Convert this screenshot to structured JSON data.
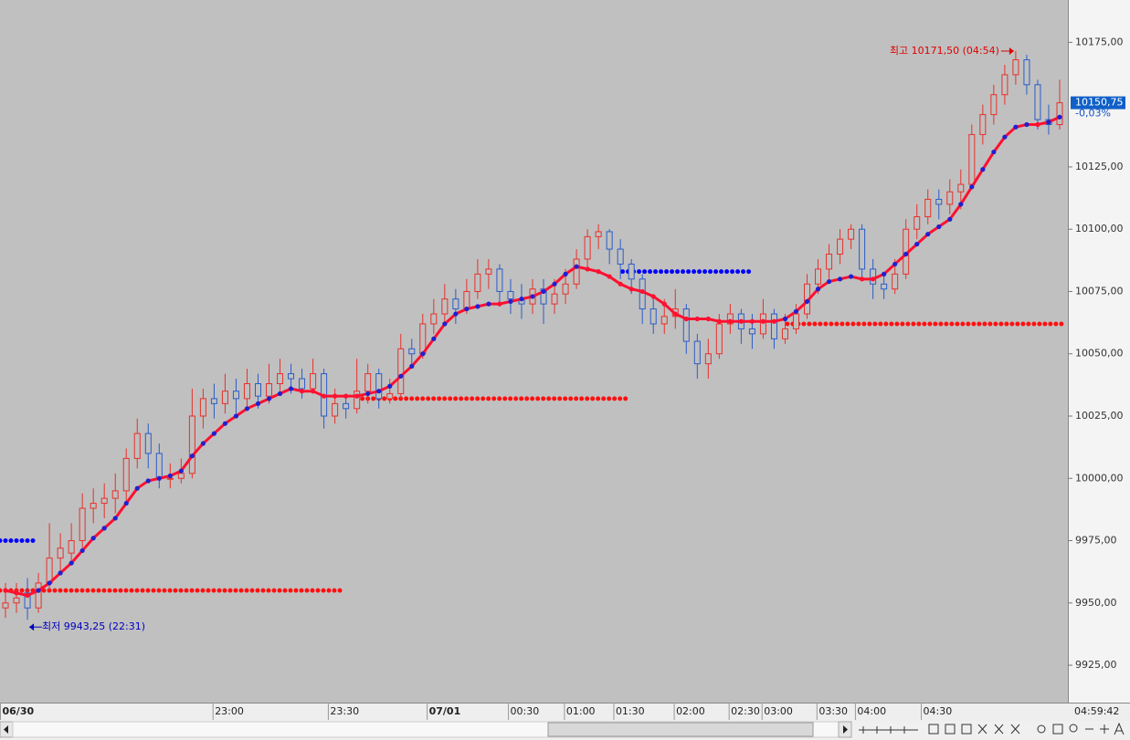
{
  "chart_data": {
    "type": "candlestick",
    "xlim": [
      -0.5,
      96.5
    ],
    "xticks": [
      {
        "value": -0.5,
        "label": "06/30"
      },
      {
        "value": 18.9,
        "label": "23:00"
      },
      {
        "value": 29.4,
        "label": "23:30"
      },
      {
        "value": 38.4,
        "label": "07/01"
      },
      {
        "value": 45.8,
        "label": "00:30"
      },
      {
        "value": 50.9,
        "label": "01:00"
      },
      {
        "value": 55.4,
        "label": "01:30"
      },
      {
        "value": 60.9,
        "label": "02:00"
      },
      {
        "value": 65.9,
        "label": "02:30"
      },
      {
        "value": 68.9,
        "label": "03:00"
      },
      {
        "value": 73.9,
        "label": "03:30"
      },
      {
        "value": 77.4,
        "label": "04:00"
      },
      {
        "value": 83.4,
        "label": "04:30"
      }
    ],
    "ylim": [
      9910,
      10192
    ],
    "yticks": [
      {
        "value": 10175,
        "label": "10175,00"
      },
      {
        "value": 10125,
        "label": "10125,00"
      },
      {
        "value": 10100,
        "label": "10100,00"
      },
      {
        "value": 10075,
        "label": "10075,00"
      },
      {
        "value": 10050,
        "label": "10050,00"
      },
      {
        "value": 10025,
        "label": "10025,00"
      },
      {
        "value": 10000,
        "label": "10000,00"
      },
      {
        "value": 9975,
        "label": "9975,00"
      },
      {
        "value": 9950,
        "label": "9950,00"
      },
      {
        "value": 9925,
        "label": "9925,00"
      }
    ],
    "up_color": "#e8302a",
    "down_color": "#2a5cc8",
    "candles": [
      [
        9948,
        9958,
        9944,
        9950
      ],
      [
        9950,
        9958,
        9946,
        9952
      ],
      [
        9954,
        9960,
        9943.25,
        9948
      ],
      [
        9948,
        9962,
        9946,
        9958
      ],
      [
        9958,
        9982,
        9955,
        9968
      ],
      [
        9968,
        9978,
        9962,
        9972
      ],
      [
        9970,
        9982,
        9966,
        9975
      ],
      [
        9975,
        9994,
        9972,
        9988
      ],
      [
        9988,
        9996,
        9982,
        9990
      ],
      [
        9990,
        9998,
        9984,
        9992
      ],
      [
        9992,
        10002,
        9986,
        9995
      ],
      [
        9995,
        10012,
        9990,
        10008
      ],
      [
        10008,
        10024,
        10004,
        10018
      ],
      [
        10018,
        10022,
        10004,
        10010
      ],
      [
        10010,
        10014,
        9996,
        10000
      ],
      [
        10000,
        10006,
        9996,
        10000
      ],
      [
        10000,
        10008,
        9998,
        10002
      ],
      [
        10002,
        10036,
        10000,
        10025
      ],
      [
        10025,
        10036,
        10020,
        10032
      ],
      [
        10032,
        10038,
        10024,
        10030
      ],
      [
        10030,
        10042,
        10026,
        10035
      ],
      [
        10035,
        10040,
        10026,
        10032
      ],
      [
        10032,
        10044,
        10028,
        10038
      ],
      [
        10038,
        10042,
        10028,
        10033
      ],
      [
        10033,
        10046,
        10030,
        10038
      ],
      [
        10038,
        10048,
        10034,
        10042
      ],
      [
        10042,
        10046,
        10034,
        10040
      ],
      [
        10040,
        10044,
        10032,
        10036
      ],
      [
        10036,
        10048,
        10034,
        10042
      ],
      [
        10042,
        10044,
        10020,
        10025
      ],
      [
        10025,
        10036,
        10022,
        10030
      ],
      [
        10030,
        10034,
        10024,
        10028
      ],
      [
        10028,
        10048,
        10026,
        10035
      ],
      [
        10035,
        10046,
        10030,
        10042
      ],
      [
        10042,
        10044,
        10028,
        10032
      ],
      [
        10032,
        10040,
        10030,
        10034
      ],
      [
        10034,
        10058,
        10032,
        10052
      ],
      [
        10052,
        10056,
        10044,
        10050
      ],
      [
        10050,
        10066,
        10048,
        10062
      ],
      [
        10062,
        10072,
        10058,
        10066
      ],
      [
        10066,
        10078,
        10062,
        10072
      ],
      [
        10072,
        10076,
        10062,
        10068
      ],
      [
        10068,
        10080,
        10066,
        10075
      ],
      [
        10075,
        10088,
        10072,
        10082
      ],
      [
        10082,
        10088,
        10076,
        10084
      ],
      [
        10084,
        10086,
        10070,
        10075
      ],
      [
        10075,
        10080,
        10066,
        10072
      ],
      [
        10072,
        10078,
        10064,
        10070
      ],
      [
        10070,
        10080,
        10066,
        10076
      ],
      [
        10076,
        10080,
        10062,
        10070
      ],
      [
        10070,
        10080,
        10066,
        10074
      ],
      [
        10074,
        10084,
        10070,
        10078
      ],
      [
        10078,
        10092,
        10076,
        10088
      ],
      [
        10088,
        10100,
        10084,
        10097
      ],
      [
        10097,
        10102,
        10092,
        10099
      ],
      [
        10099,
        10100,
        10086,
        10092
      ],
      [
        10092,
        10096,
        10080,
        10086
      ],
      [
        10086,
        10088,
        10074,
        10080
      ],
      [
        10080,
        10082,
        10062,
        10068
      ],
      [
        10068,
        10074,
        10058,
        10062
      ],
      [
        10062,
        10072,
        10058,
        10065
      ],
      [
        10065,
        10076,
        10060,
        10068
      ],
      [
        10068,
        10070,
        10050,
        10055
      ],
      [
        10055,
        10058,
        10040,
        10046
      ],
      [
        10046,
        10056,
        10040,
        10050
      ],
      [
        10050,
        10066,
        10048,
        10062
      ],
      [
        10062,
        10070,
        10058,
        10066
      ],
      [
        10066,
        10068,
        10054,
        10060
      ],
      [
        10060,
        10066,
        10052,
        10058
      ],
      [
        10058,
        10072,
        10056,
        10066
      ],
      [
        10066,
        10068,
        10052,
        10056
      ],
      [
        10056,
        10066,
        10054,
        10060
      ],
      [
        10060,
        10070,
        10058,
        10066
      ],
      [
        10066,
        10082,
        10064,
        10078
      ],
      [
        10078,
        10088,
        10074,
        10084
      ],
      [
        10084,
        10094,
        10080,
        10090
      ],
      [
        10090,
        10100,
        10086,
        10096
      ],
      [
        10096,
        10102,
        10092,
        10100
      ],
      [
        10100,
        10102,
        10080,
        10084
      ],
      [
        10084,
        10088,
        10072,
        10078
      ],
      [
        10078,
        10082,
        10072,
        10076
      ],
      [
        10076,
        10088,
        10074,
        10082
      ],
      [
        10082,
        10104,
        10080,
        10100
      ],
      [
        10100,
        10110,
        10096,
        10105
      ],
      [
        10105,
        10116,
        10102,
        10112
      ],
      [
        10112,
        10116,
        10104,
        10110
      ],
      [
        10110,
        10120,
        10106,
        10115
      ],
      [
        10115,
        10124,
        10108,
        10118
      ],
      [
        10118,
        10142,
        10116,
        10138
      ],
      [
        10138,
        10150,
        10134,
        10146
      ],
      [
        10146,
        10158,
        10142,
        10154
      ],
      [
        10154,
        10166,
        10150,
        10162
      ],
      [
        10162,
        10171.5,
        10158,
        10168
      ],
      [
        10168,
        10170,
        10154,
        10158
      ],
      [
        10158,
        10160,
        10140,
        10144
      ],
      [
        10144,
        10150,
        10138,
        10142
      ],
      [
        10142,
        10160,
        10140,
        10150.75
      ]
    ],
    "ma": [
      9955,
      9954,
      9953,
      9955,
      9958,
      9962,
      9966,
      9971,
      9976,
      9980,
      9984,
      9990,
      9996,
      9999,
      10000,
      10001,
      10003,
      10009,
      10014,
      10018,
      10022,
      10025,
      10028,
      10030,
      10032,
      10034,
      10036,
      10035,
      10035,
      10033,
      10033,
      10033,
      10033,
      10034,
      10035,
      10037,
      10041,
      10045,
      10050,
      10056,
      10062,
      10066,
      10068,
      10069,
      10070,
      10070,
      10071,
      10072,
      10073,
      10075,
      10078,
      10082,
      10085,
      10084,
      10083,
      10081,
      10078,
      10076,
      10075,
      10073,
      10070,
      10066,
      10064,
      10064,
      10064,
      10063,
      10063,
      10063,
      10063,
      10063,
      10063,
      10064,
      10067,
      10071,
      10076,
      10079,
      10080,
      10081,
      10080,
      10080,
      10082,
      10086,
      10090,
      10094,
      10098,
      10101,
      10104,
      10110,
      10117,
      10124,
      10131,
      10137,
      10141,
      10142,
      10142,
      10143,
      10145
    ],
    "ma_color": "#ff1030",
    "ma_rise_color": "#2020d0",
    "levels": [
      {
        "value": 9975,
        "from": -0.5,
        "to": 2.8,
        "color": "#0000ff"
      },
      {
        "value": 9955,
        "from": -0.5,
        "to": 30.75,
        "color": "#ff1010"
      },
      {
        "value": 10032,
        "from": 32,
        "to": 56.8,
        "color": "#ff1010"
      },
      {
        "value": 10083,
        "from": 56.2,
        "to": 67.8,
        "color": "#0000ff"
      },
      {
        "value": 10062,
        "from": 71.2,
        "to": 96.3,
        "color": "#ff1010"
      }
    ],
    "annotations": [
      {
        "text": "최고 10171,50 (04:54)",
        "x": 92,
        "value": 10171.5,
        "color": "#e00000",
        "side": "left"
      },
      {
        "text": "최저 9943,25 (22:31)",
        "x": 2,
        "value": 9943.25,
        "color": "#0000c0",
        "side": "right"
      }
    ],
    "last": {
      "value": 10150.75,
      "label": "10150,75",
      "change": "-0,03%"
    },
    "time": "04:59:42"
  }
}
